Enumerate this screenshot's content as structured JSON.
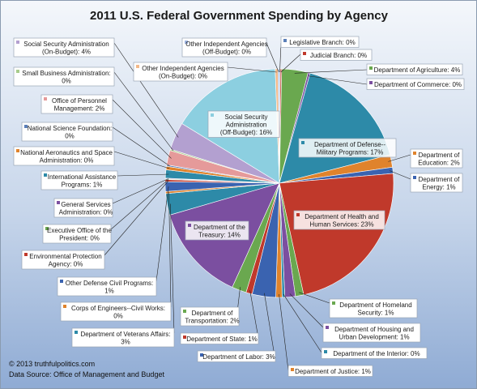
{
  "footer": {
    "copyright": "© 2013  truthfulpolitics.com",
    "source": "Data Source:  Office of Management and Budget"
  },
  "chart_data": {
    "type": "pie",
    "title": "2011 U.S. Federal Government Spending by Agency",
    "start_angle_deg": 0,
    "direction": "clockwise",
    "slices": [
      {
        "label": "Legislative Branch: 0%",
        "value": 0.13,
        "color": "#5b7fb8"
      },
      {
        "label": "Judicial Branch: 0%",
        "value": 0.2,
        "color": "#c0392b"
      },
      {
        "label": "Department of Agriculture: 4%",
        "value": 3.8,
        "color": "#6aa84f"
      },
      {
        "label": "Department of Commerce: 0%",
        "value": 0.3,
        "color": "#7b4fa0"
      },
      {
        "label": "Department of Defense--Military Programs: 17%",
        "value": 17.0,
        "color": "#2d8aa8"
      },
      {
        "label": "Department of Education: 2%",
        "value": 1.8,
        "color": "#e0832c"
      },
      {
        "label": "Department of Energy: 1%",
        "value": 0.9,
        "color": "#3a63b0"
      },
      {
        "label": "Department of Health and Human Services: 23%",
        "value": 23.4,
        "color": "#c0392b"
      },
      {
        "label": "Department of Homeland Security: 1%",
        "value": 1.2,
        "color": "#6aa84f"
      },
      {
        "label": "Department of Housing and Urban Development: 1%",
        "value": 1.5,
        "color": "#7b4fa0"
      },
      {
        "label": "Department of the Interior: 0%",
        "value": 0.4,
        "color": "#2d8aa8"
      },
      {
        "label": "Department of Justice: 1%",
        "value": 0.9,
        "color": "#e0832c"
      },
      {
        "label": "Department of Labor: 3%",
        "value": 3.4,
        "color": "#3a63b0"
      },
      {
        "label": "Department of State: 1%",
        "value": 0.9,
        "color": "#c0392b"
      },
      {
        "label": "Department of Transportation: 2%",
        "value": 2.1,
        "color": "#6aa84f"
      },
      {
        "label": "Department of the Treasury: 14%",
        "value": 14.0,
        "color": "#7b4fa0"
      },
      {
        "label": "Department of Veterans Affairs: 3%",
        "value": 3.1,
        "color": "#2d8aa8"
      },
      {
        "label": "Corps of Engineers--Civil Works: 0%",
        "value": 0.3,
        "color": "#e0832c"
      },
      {
        "label": "Other Defense Civil Programs: 1%",
        "value": 1.4,
        "color": "#3a63b0"
      },
      {
        "label": "Environmental Protection Agency: 0%",
        "value": 0.3,
        "color": "#c0392b"
      },
      {
        "label": "Executive Office of the President: 0%",
        "value": 0.1,
        "color": "#6aa84f"
      },
      {
        "label": "General Services Administration: 0%",
        "value": 0.1,
        "color": "#7b4fa0"
      },
      {
        "label": "International Assistance Programs: 1%",
        "value": 1.2,
        "color": "#2d8aa8"
      },
      {
        "label": "National Aeronautics and Space Administration: 0%",
        "value": 0.5,
        "color": "#e0832c"
      },
      {
        "label": "National Science Foundation: 0%",
        "value": 0.2,
        "color": "#5b7fb8"
      },
      {
        "label": "Office of Personnel Management: 2%",
        "value": 2.1,
        "color": "#e59a9a"
      },
      {
        "label": "Small Business Administration: 0%",
        "value": 0.2,
        "color": "#a8cc8c"
      },
      {
        "label": "Social Security Administration (On-Budget): 4%",
        "value": 4.0,
        "color": "#b3a0d0"
      },
      {
        "label": "Social Security Administration (Off-Budget): 16%",
        "value": 16.0,
        "color": "#8ccfe0"
      },
      {
        "label": "Other Independent Agencies (On-Budget): 0%",
        "value": 0.4,
        "color": "#f2b98a"
      },
      {
        "label": "Other Independent Agencies (Off-Budget): 0%",
        "value": 0.2,
        "color": "#9fb5e0"
      }
    ],
    "labels": [
      {
        "slice": 0,
        "lines": [
          "Legislative Branch: 0%"
        ]
      },
      {
        "slice": 1,
        "lines": [
          "Judicial Branch: 0%"
        ]
      },
      {
        "slice": 2,
        "lines": [
          "Department of Agriculture: 4%"
        ]
      },
      {
        "slice": 3,
        "lines": [
          "Department of Commerce: 0%"
        ]
      },
      {
        "slice": 4,
        "lines": [
          "Department of Defense--",
          "Military Programs: 17%"
        ]
      },
      {
        "slice": 5,
        "lines": [
          "Department of",
          "Education: 2%"
        ]
      },
      {
        "slice": 6,
        "lines": [
          "Department of",
          "Energy: 1%"
        ]
      },
      {
        "slice": 7,
        "lines": [
          "Department of Health and",
          "Human Services: 23%"
        ]
      },
      {
        "slice": 8,
        "lines": [
          "Department of Homeland",
          "Security: 1%"
        ]
      },
      {
        "slice": 9,
        "lines": [
          "Department of Housing and",
          "Urban Development: 1%"
        ]
      },
      {
        "slice": 10,
        "lines": [
          "Department of the Interior: 0%"
        ]
      },
      {
        "slice": 11,
        "lines": [
          "Department of Justice: 1%"
        ]
      },
      {
        "slice": 12,
        "lines": [
          "Department of Labor: 3%"
        ]
      },
      {
        "slice": 13,
        "lines": [
          "Department of State: 1%"
        ]
      },
      {
        "slice": 14,
        "lines": [
          "Department of",
          "Transportation: 2%"
        ]
      },
      {
        "slice": 15,
        "lines": [
          "Department of the",
          "Treasury: 14%"
        ]
      },
      {
        "slice": 16,
        "lines": [
          "Department of Veterans Affairs:",
          "3%"
        ]
      },
      {
        "slice": 17,
        "lines": [
          "Corps of Engineers--Civil Works:",
          "0%"
        ]
      },
      {
        "slice": 18,
        "lines": [
          "Other Defense Civil Programs:",
          "1%"
        ]
      },
      {
        "slice": 19,
        "lines": [
          "Environmental Protection",
          "Agency: 0%"
        ]
      },
      {
        "slice": 20,
        "lines": [
          "Executive Office of the",
          "President: 0%"
        ]
      },
      {
        "slice": 21,
        "lines": [
          "General Services",
          "Administration: 0%"
        ]
      },
      {
        "slice": 22,
        "lines": [
          "International Assistance",
          "Programs: 1%"
        ]
      },
      {
        "slice": 23,
        "lines": [
          "National Aeronautics and Space",
          "Administration: 0%"
        ]
      },
      {
        "slice": 24,
        "lines": [
          "National Science Foundation:",
          "0%"
        ]
      },
      {
        "slice": 25,
        "lines": [
          "Office of Personnel",
          "Management: 2%"
        ]
      },
      {
        "slice": 26,
        "lines": [
          "Small Business Administration:",
          "0%"
        ]
      },
      {
        "slice": 27,
        "lines": [
          "Social Security Administration",
          "(On-Budget): 4%"
        ]
      },
      {
        "slice": 28,
        "lines": [
          "Social Security",
          "Administration",
          "(Off-Budget): 16%"
        ]
      },
      {
        "slice": 29,
        "lines": [
          "Other Independent Agencies",
          "(On-Budget): 0%"
        ]
      },
      {
        "slice": 30,
        "lines": [
          "Other Independent Agencies",
          "(Off-Budget): 0%"
        ]
      }
    ]
  }
}
